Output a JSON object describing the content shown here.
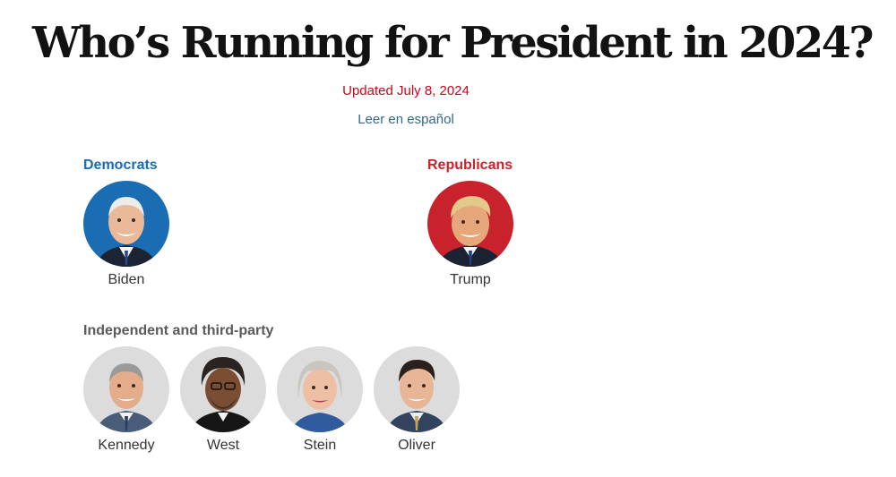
{
  "header": {
    "title": "Who’s Running for President in 2024?",
    "updated": "Updated July 8, 2024",
    "spanish_link": "Leer en español"
  },
  "colors": {
    "democrat": "#1a6db3",
    "republican": "#c8232c",
    "independent": "#dcdcdc",
    "updated_text": "#d0021b",
    "link": "#326891"
  },
  "groups": {
    "democrats": {
      "label": "Democrats",
      "candidates": [
        {
          "name": "Biden",
          "portrait_icon": "biden-portrait-icon"
        }
      ]
    },
    "republicans": {
      "label": "Republicans",
      "candidates": [
        {
          "name": "Trump",
          "portrait_icon": "trump-portrait-icon"
        }
      ]
    },
    "independent": {
      "label": "Independent and third-party",
      "candidates": [
        {
          "name": "Kennedy",
          "portrait_icon": "kennedy-portrait-icon"
        },
        {
          "name": "West",
          "portrait_icon": "west-portrait-icon"
        },
        {
          "name": "Stein",
          "portrait_icon": "stein-portrait-icon"
        },
        {
          "name": "Oliver",
          "portrait_icon": "oliver-portrait-icon"
        }
      ]
    }
  }
}
